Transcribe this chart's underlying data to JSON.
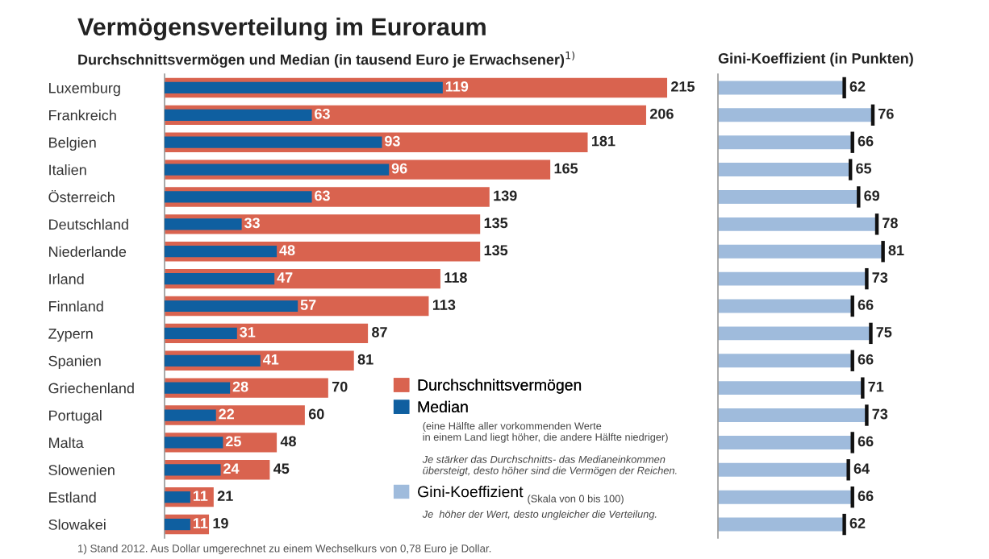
{
  "chart_data": [
    {
      "type": "bar",
      "orientation": "horizontal",
      "title": "Vermögensverteilung im Euroraum",
      "subtitle": "Durchschnittsvermögen und Median (in tausend Euro je Erwachsener)$^{1)}$",
      "categories": [
        "Luxemburg",
        "Frankreich",
        "Belgien",
        "Italien",
        "Österreich",
        "Deutschland",
        "Niederlande",
        "Irland",
        "Finnland",
        "Zypern",
        "Spanien",
        "Griechenland",
        "Portugal",
        "Malta",
        "Slowenien",
        "Estland",
        "Slowakei"
      ],
      "series": [
        {
          "name": "Durchschnittsvermögen",
          "color": "#d9634f",
          "values": [
            215,
            206,
            181,
            165,
            139,
            135,
            135,
            118,
            113,
            87,
            81,
            70,
            60,
            48,
            45,
            21,
            19
          ]
        },
        {
          "name": "Median",
          "color": "#0f5fa0",
          "values": [
            119,
            63,
            93,
            96,
            63,
            33,
            48,
            47,
            57,
            31,
            41,
            28,
            22,
            25,
            24,
            11,
            11
          ]
        }
      ],
      "data_labels": true,
      "tick_labels": "y",
      "legend": "bottom right",
      "annotations": [
        "(eine Hälfte aller vorkommenden Werte\nin einem Land liegt höher, die andere Hälfte niedriger)",
        "Je stärker das Durchschnitts- das Medianeinkommen\nübersteigt, desto höher sind die Vermögen der Reichen.",
        "1) Stand 2012. Aus Dollar umgerechnet zu einem Wechselkurs von 0,78 Euro je Dollar."
      ]
    },
    {
      "type": "bar",
      "orientation": "horizontal",
      "title": "Gini-Koeffizient (in Punkten)",
      "series": [
        {
          "name": "Gini-Koeffizient",
          "color": "#9fbbdc",
          "values": [
            62,
            76,
            66,
            65,
            69,
            78,
            81,
            73,
            66,
            75,
            66,
            71,
            73,
            66,
            64,
            66,
            62
          ]
        }
      ],
      "data_labels": true,
      "tick_labels": false,
      "legend": "left",
      "annotations": [
        "(Skala von 0 bis 100)",
        "Je  höher der Wert, desto ungleicher die Verteilung."
      ]
    }
  ]
}
